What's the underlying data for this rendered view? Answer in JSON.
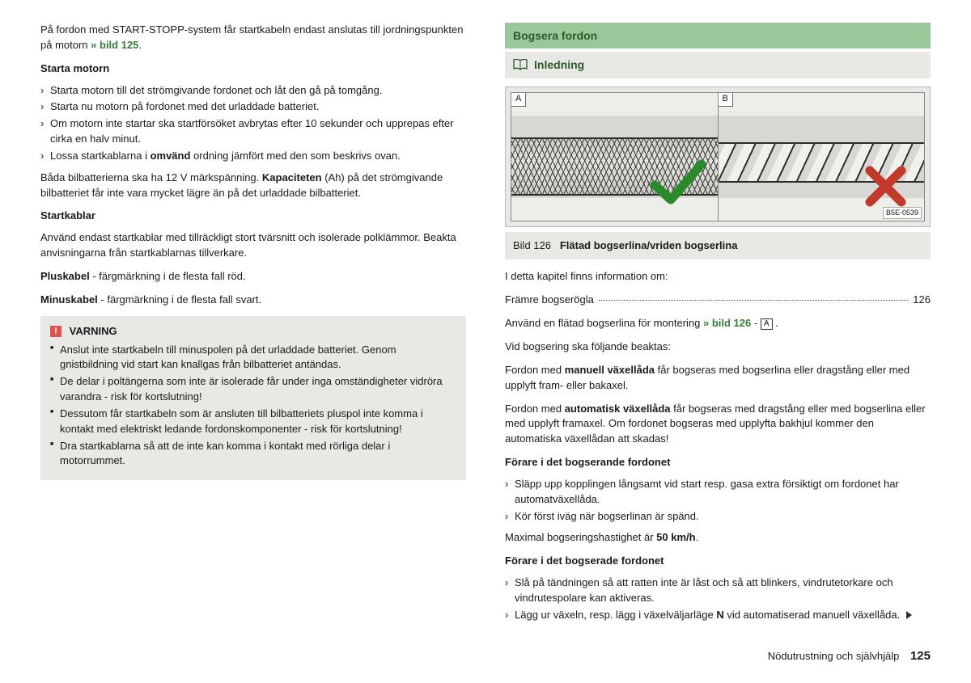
{
  "left": {
    "intro": "På fordon med START-STOPP-system får startkabeln endast anslutas till jordningspunkten på motorn ",
    "intro_link": "» bild 125",
    "starta_motorn_h": "Starta motorn",
    "starta_items": [
      "Starta motorn till det strömgivande fordonet och låt den gå på tomgång.",
      "Starta nu motorn på fordonet med det urladdade batteriet.",
      "Om motorn inte startar ska startförsöket avbrytas efter 10 sekunder och upprepas efter cirka en halv minut.",
      "Lossa startkablarna i <b>omvänd</b> ordning jämfört med den som beskrivs ovan."
    ],
    "kapacitet": "Båda bilbatterierna ska ha 12 V märkspänning. <b>Kapaciteten</b> (Ah) på det strömgivande bilbatteriet får inte vara mycket lägre än på det urladdade bilbatteriet.",
    "startkablar_h": "Startkablar",
    "startkablar_p": "Använd endast startkablar med tillräckligt stort tvärsnitt och isolerade polklämmor. Beakta anvisningarna från startkablarnas tillverkare.",
    "plus": "<b>Pluskabel</b> - färgmärkning i de flesta fall röd.",
    "minus": "<b>Minuskabel</b> - färgmärkning i de flesta fall svart.",
    "varning_h": "VARNING",
    "varning_items": [
      "Anslut inte startkabeln till minuspolen på det urladdade batteriet. Genom gnistbildning vid start kan knallgas från bilbatteriet antändas.",
      "De delar i poltängerna som inte är isolerade får under inga omständigheter vidröra varandra - risk för kortslutning!",
      "Dessutom får startkabeln som är ansluten till bilbatteriets pluspol inte komma i kontakt med elektriskt ledande fordonskomponenter - risk för kortslutning!",
      "Dra startkablarna så att de inte kan komma i kontakt med rörliga delar i motorrummet."
    ]
  },
  "right": {
    "section_title": "Bogsera fordon",
    "sub_title": "Inledning",
    "fig_label_a": "A",
    "fig_label_b": "B",
    "fig_code": "B5E-0539",
    "caption_prefix": "Bild 126",
    "caption_text": "Flätad bogserlina/vriden bogserlina",
    "info_intro": "I detta kapitel finns information om:",
    "toc_label": "Främre bogserögla",
    "toc_page": "126",
    "use_rope_a": "Använd en flätad bogserlina för montering ",
    "use_rope_link": "» bild 126",
    "use_rope_suffix_box": "A",
    "use_rope_tail": ".",
    "attention": "Vid bogsering ska följande beaktas:",
    "manual": "Fordon med <b>manuell växellåda</b> får bogseras med bogserlina eller dragstång eller med upplyft fram- eller bakaxel.",
    "auto": "Fordon med <b>automatisk växellåda</b> får bogseras med dragstång eller med bogserlina eller med upplyft framaxel. Om fordonet bogseras med upplyfta bakhjul kommer den automatiska växellådan att skadas!",
    "driver_towing_h": "Förare i det bogserande fordonet",
    "driver_towing_items": [
      "Släpp upp kopplingen långsamt vid start resp. gasa extra försiktigt om fordonet har automatväxellåda.",
      "Kör först iväg när bogserlinan är spänd."
    ],
    "max_speed": "Maximal bogseringshastighet är <b>50 km/h</b>.",
    "driver_towed_h": "Förare i det bogserade fordonet",
    "driver_towed_items": [
      "Slå på tändningen så att ratten inte är låst och så att blinkers, vindrutetorkare och vindrutespolare kan aktiveras.",
      "Lägg ur växeln, resp. lägg i växelväljarläge <b>N</b> vid automatiserad manuell växellåda."
    ]
  },
  "footer": {
    "text": "Nödutrustning och självhjälp",
    "page": "125"
  }
}
